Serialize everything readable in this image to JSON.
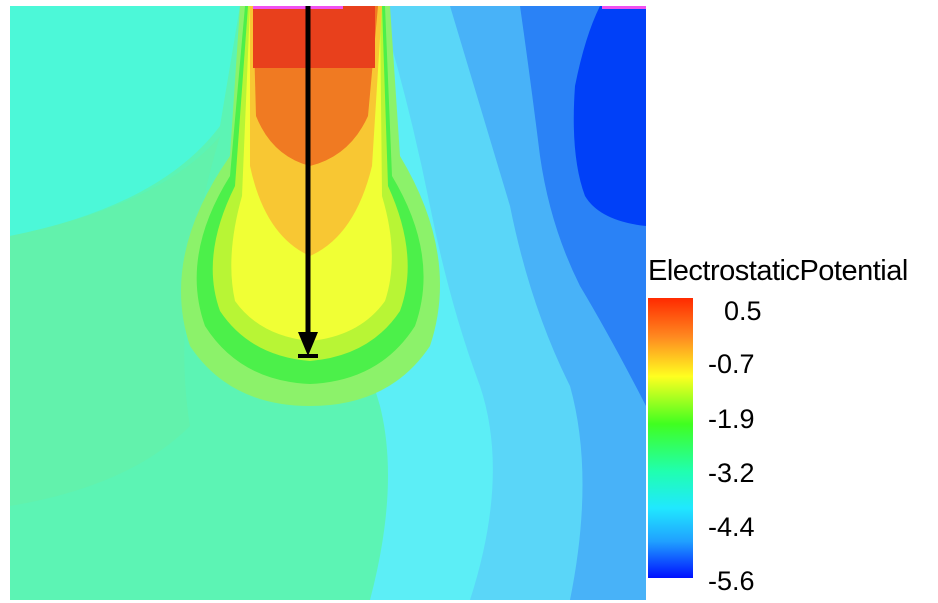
{
  "legend": {
    "title": "ElectrostaticPotential",
    "ticks": [
      "0.5",
      "-0.7",
      "-1.9",
      "-3.2",
      "-4.4",
      "-5.6"
    ]
  },
  "colors": {
    "c0": "#e8401c",
    "c1": "#f07a22",
    "c2": "#f8c733",
    "c3": "#f0ff35",
    "c4": "#b8f535",
    "c5": "#4cf04a",
    "c6": "#5cf4a8",
    "c7": "#4cf8d8",
    "c8": "#5ceef6",
    "c9": "#5ad6f8",
    "c10": "#48b2f8",
    "c11": "#2a82f6",
    "c12": "#0040f8",
    "marker": "#f050f0",
    "arrow": "#000000"
  }
}
